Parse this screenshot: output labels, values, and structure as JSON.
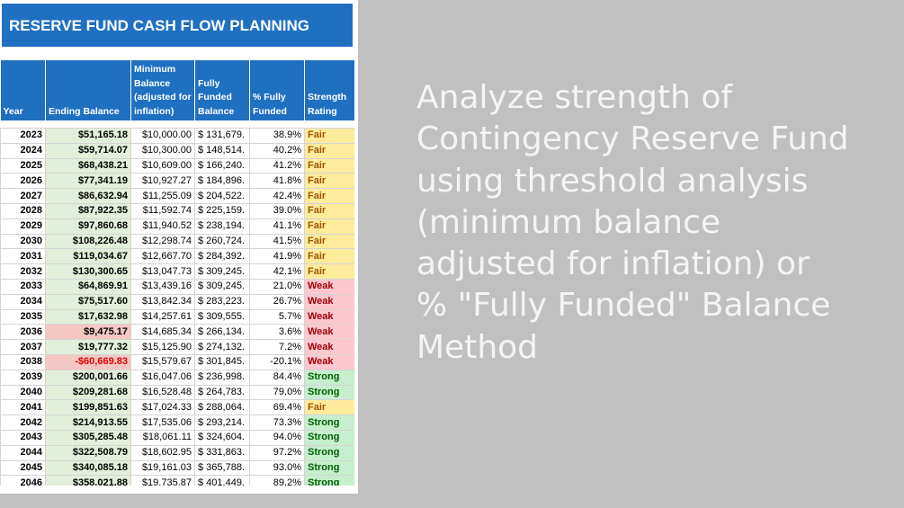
{
  "panel": {
    "title": "RESERVE FUND CASH FLOW PLANNING",
    "table": {
      "header": [
        "Year",
        "Ending Balance",
        "Minimum Balance (adjusted for inflation)",
        "Fully Funded Balance",
        "% Fully Funded",
        "Strength Rating"
      ],
      "rows": [
        [
          2023,
          "$51,165.18",
          "$10,000.00",
          "$ 131,679.",
          "38.9%",
          "Fair"
        ],
        [
          2024,
          "$59,714.07",
          "$10,300.00",
          "$ 148,514.",
          "40.2%",
          "Fair"
        ],
        [
          2025,
          "$68,438.21",
          "$10,609.00",
          "$ 166,240.",
          "41.2%",
          "Fair"
        ],
        [
          2026,
          "$77,341.19",
          "$10,927.27",
          "$ 184,896.",
          "41.8%",
          "Fair"
        ],
        [
          2027,
          "$86,632.94",
          "$11,255.09",
          "$ 204,522.",
          "42.4%",
          "Fair"
        ],
        [
          2028,
          "$87,922.35",
          "$11,592.74",
          "$ 225,159.",
          "39.0%",
          "Fair"
        ],
        [
          2029,
          "$97,860.68",
          "$11,940.52",
          "$ 238,194.",
          "41.1%",
          "Fair"
        ],
        [
          2030,
          "$108,226.48",
          "$12,298.74",
          "$ 260,724.",
          "41.5%",
          "Fair"
        ],
        [
          2031,
          "$119,034.67",
          "$12,667.70",
          "$ 284,392.",
          "41.9%",
          "Fair"
        ],
        [
          2032,
          "$130,300.65",
          "$13,047.73",
          "$ 309,245.",
          "42.1%",
          "Fair"
        ],
        [
          2033,
          "$64,869.91",
          "$13,439.16",
          "$ 309,245.",
          "21.0%",
          "Weak"
        ],
        [
          2034,
          "$75,517.60",
          "$13,842.34",
          "$ 283,223.",
          "26.7%",
          "Weak"
        ],
        [
          2035,
          "$17,632.98",
          "$14,257.61",
          "$ 309,555.",
          "5.7%",
          "Weak"
        ],
        [
          2036,
          "$9,475.17",
          "$14,685.34",
          "$ 266,134.",
          "3.6%",
          "Weak"
        ],
        [
          2037,
          "$19,777.32",
          "$15,125.90",
          "$ 274,132.",
          "7.2%",
          "Weak"
        ],
        [
          2038,
          "-$60,669.83",
          "$15,579.67",
          "$ 301,845.",
          "-20.1%",
          "Weak"
        ],
        [
          2039,
          "$200,001.66",
          "$16,047.06",
          "$ 236,998.",
          "84.4%",
          "Strong"
        ],
        [
          2040,
          "$209,281.68",
          "$16,528.48",
          "$ 264,783.",
          "79.0%",
          "Strong"
        ],
        [
          2041,
          "$199,851.63",
          "$17,024.33",
          "$ 288,064.",
          "69.4%",
          "Fair"
        ],
        [
          2042,
          "$214,913.55",
          "$17,535.06",
          "$ 293,214.",
          "73.3%",
          "Strong"
        ],
        [
          2043,
          "$305,285.48",
          "$18,061.11",
          "$ 324,604.",
          "94.0%",
          "Strong"
        ],
        [
          2044,
          "$322,508.79",
          "$18,602.95",
          "$ 331,863.",
          "97.2%",
          "Strong"
        ],
        [
          2045,
          "$340,085.18",
          "$19,161.03",
          "$ 365,788.",
          "93.0%",
          "Strong"
        ],
        [
          2046,
          "$358,021.88",
          "$19,735.87",
          "$ 401,449.",
          "89.2%",
          "Strong"
        ]
      ]
    }
  },
  "caption": {
    "lines": [
      "Analyze strength of",
      "Contingency Reserve Fund",
      "using threshold analysis",
      "(minimum balance",
      "adjusted for inflation) or",
      "% \"Fully Funded\" Balance",
      "Method"
    ]
  }
}
